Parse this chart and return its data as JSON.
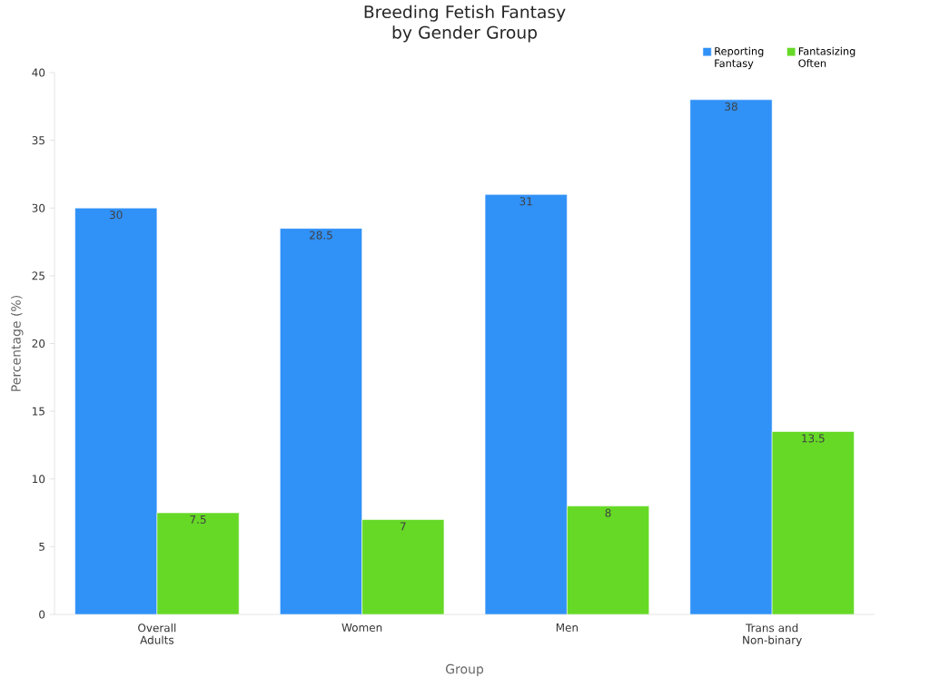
{
  "chart_data": {
    "type": "bar",
    "title": "Breeding Fetish Fantasy by Gender Group",
    "xlabel": "Group",
    "ylabel": "Percentage (%)",
    "categories": [
      "Overall Adults",
      "Women",
      "Men",
      "Trans and Non-binary"
    ],
    "series": [
      {
        "name": "Reporting Fantasy",
        "color": "#3091f7",
        "values": [
          30,
          28.5,
          31,
          38
        ]
      },
      {
        "name": "Fantasizing Often",
        "color": "#66d926",
        "values": [
          7.5,
          7,
          8,
          13.5
        ]
      }
    ],
    "ylim": [
      0,
      40
    ],
    "yticks": [
      0,
      5,
      10,
      15,
      20,
      25,
      30,
      35,
      40
    ],
    "data_labels": true,
    "legend": "top right"
  }
}
